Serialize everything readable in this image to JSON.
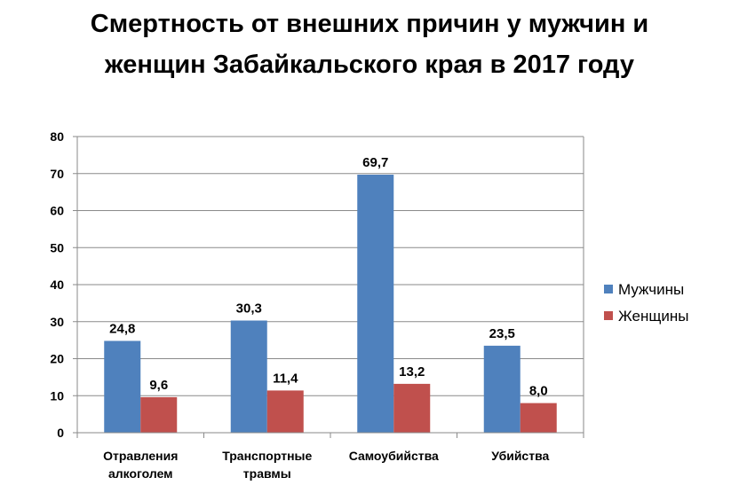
{
  "chart_data": {
    "type": "bar",
    "title_lines": [
      "Смертность от внешних причин у мужчин и",
      "женщин Забайкальского  края в 2017 году"
    ],
    "categories": [
      [
        "Отравления",
        "алкоголем"
      ],
      [
        "Транспортные",
        "травмы"
      ],
      [
        "Самоубийства"
      ],
      [
        "Убийства"
      ]
    ],
    "series": [
      {
        "name": "Мужчины",
        "color": "#4F81BD",
        "values": [
          24.8,
          30.3,
          69.7,
          23.5
        ],
        "labels": [
          "24,8",
          "30,3",
          "69,7",
          "23,5"
        ]
      },
      {
        "name": "Женщины",
        "color": "#C0504D",
        "values": [
          9.6,
          11.4,
          13.2,
          8.0
        ],
        "labels": [
          "9,6",
          "11,4",
          "13,2",
          "8,0"
        ]
      }
    ],
    "ylim": [
      0,
      80
    ],
    "yticks": [
      0,
      10,
      20,
      30,
      40,
      50,
      60,
      70,
      80
    ],
    "grid": true,
    "legend_position": "right"
  }
}
